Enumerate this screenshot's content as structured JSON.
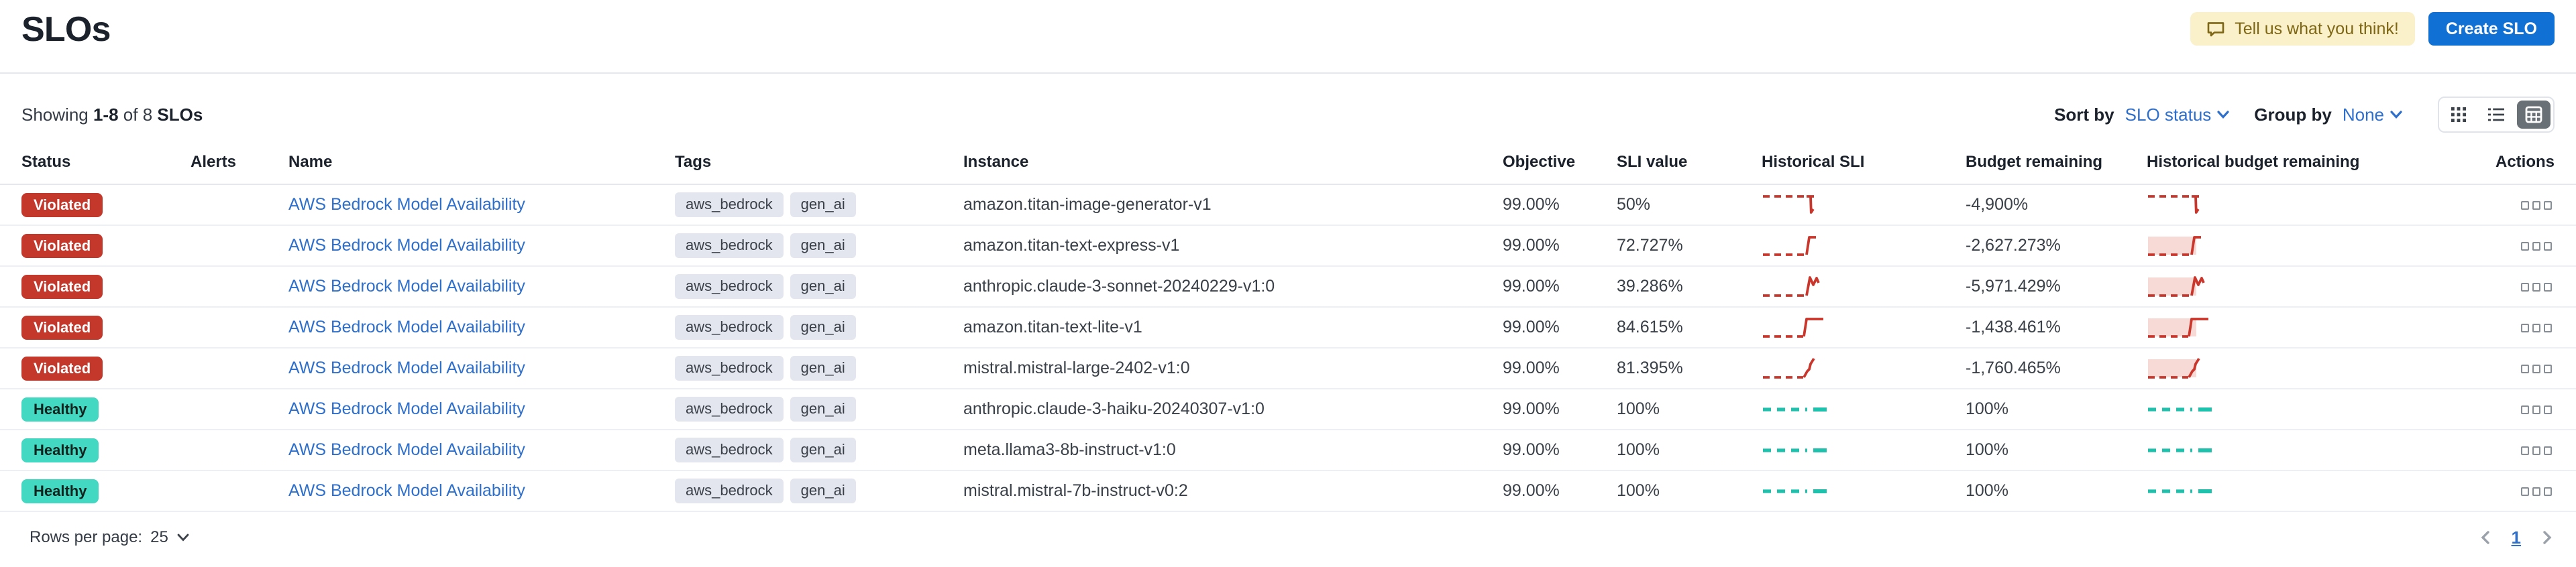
{
  "page": {
    "title": "SLOs",
    "feedback_button": "Tell us what you think!",
    "create_button": "Create SLO"
  },
  "toolbar": {
    "showing_prefix": "Showing",
    "showing_range": "1-8",
    "showing_mid": "of 8",
    "showing_suffix": "SLOs",
    "sort_by_label": "Sort by",
    "sort_by_value": "SLO status",
    "group_by_label": "Group by",
    "group_by_value": "None"
  },
  "table": {
    "columns": [
      "Status",
      "Alerts",
      "Name",
      "Tags",
      "Instance",
      "Objective",
      "SLI value",
      "Historical SLI",
      "Budget remaining",
      "Historical budget remaining",
      "Actions"
    ],
    "rows": [
      {
        "status": "Violated",
        "status_kind": "violated",
        "alerts": "",
        "name": "AWS Bedrock Model Availability",
        "tags": [
          "aws_bedrock",
          "gen_ai"
        ],
        "instance": "amazon.titan-image-generator-v1",
        "objective": "99.00%",
        "sli_value": "50%",
        "hist_sli_spark": "drop-end",
        "budget_remaining": "-4,900%",
        "hist_budget_spark": "drop-end",
        "hist_budget_shaded": false
      },
      {
        "status": "Violated",
        "status_kind": "violated",
        "alerts": "",
        "name": "AWS Bedrock Model Availability",
        "tags": [
          "aws_bedrock",
          "gen_ai"
        ],
        "instance": "amazon.titan-text-express-v1",
        "objective": "99.00%",
        "sli_value": "72.727%",
        "hist_sli_spark": "rise-hook",
        "budget_remaining": "-2,627.273%",
        "hist_budget_spark": "rise-hook",
        "hist_budget_shaded": true
      },
      {
        "status": "Violated",
        "status_kind": "violated",
        "alerts": "",
        "name": "AWS Bedrock Model Availability",
        "tags": [
          "aws_bedrock",
          "gen_ai"
        ],
        "instance": "anthropic.claude-3-sonnet-20240229-v1:0",
        "objective": "99.00%",
        "sli_value": "39.286%",
        "hist_sli_spark": "spike-flag",
        "budget_remaining": "-5,971.429%",
        "hist_budget_spark": "spike-flag",
        "hist_budget_shaded": true
      },
      {
        "status": "Violated",
        "status_kind": "violated",
        "alerts": "",
        "name": "AWS Bedrock Model Availability",
        "tags": [
          "aws_bedrock",
          "gen_ai"
        ],
        "instance": "amazon.titan-text-lite-v1",
        "objective": "99.00%",
        "sli_value": "84.615%",
        "hist_sli_spark": "step-up",
        "budget_remaining": "-1,438.461%",
        "hist_budget_spark": "step-up",
        "hist_budget_shaded": true
      },
      {
        "status": "Violated",
        "status_kind": "violated",
        "alerts": "",
        "name": "AWS Bedrock Model Availability",
        "tags": [
          "aws_bedrock",
          "gen_ai"
        ],
        "instance": "mistral.mistral-large-2402-v1:0",
        "objective": "99.00%",
        "sli_value": "81.395%",
        "hist_sli_spark": "ramp-up",
        "budget_remaining": "-1,760.465%",
        "hist_budget_spark": "ramp-up",
        "hist_budget_shaded": true
      },
      {
        "status": "Healthy",
        "status_kind": "healthy",
        "alerts": "",
        "name": "AWS Bedrock Model Availability",
        "tags": [
          "aws_bedrock",
          "gen_ai"
        ],
        "instance": "anthropic.claude-3-haiku-20240307-v1:0",
        "objective": "99.00%",
        "sli_value": "100%",
        "hist_sli_spark": "flat",
        "budget_remaining": "100%",
        "hist_budget_spark": "flat",
        "hist_budget_shaded": false
      },
      {
        "status": "Healthy",
        "status_kind": "healthy",
        "alerts": "",
        "name": "AWS Bedrock Model Availability",
        "tags": [
          "aws_bedrock",
          "gen_ai"
        ],
        "instance": "meta.llama3-8b-instruct-v1:0",
        "objective": "99.00%",
        "sli_value": "100%",
        "hist_sli_spark": "flat",
        "budget_remaining": "100%",
        "hist_budget_spark": "flat",
        "hist_budget_shaded": false
      },
      {
        "status": "Healthy",
        "status_kind": "healthy",
        "alerts": "",
        "name": "AWS Bedrock Model Availability",
        "tags": [
          "aws_bedrock",
          "gen_ai"
        ],
        "instance": "mistral.mistral-7b-instruct-v0:2",
        "objective": "99.00%",
        "sli_value": "100%",
        "hist_sli_spark": "flat",
        "budget_remaining": "100%",
        "hist_budget_spark": "flat",
        "hist_budget_shaded": false
      }
    ]
  },
  "footer": {
    "rows_per_page_label": "Rows per page:",
    "rows_per_page_value": "25",
    "page_number": "1"
  },
  "colors": {
    "violated_badge": "#c4382c",
    "healthy_badge": "#42d8c1",
    "red_spark": "#c8362c",
    "teal_spark": "#1fc0ac",
    "spark_shade": "#f7dad6",
    "link_blue": "#2e6fcc",
    "create_button_blue": "#1170d4",
    "feedback_yellow": "#faf0c9"
  },
  "icons": {
    "feedback": "speech-bubble-icon",
    "dropdowns": "chevron-down-icon",
    "view_modes": [
      "grid-view-icon",
      "list-view-icon",
      "table-view-icon"
    ],
    "row_actions": "ellipsis-squares-icon",
    "pagination": [
      "chevron-left-icon",
      "chevron-right-icon"
    ]
  }
}
